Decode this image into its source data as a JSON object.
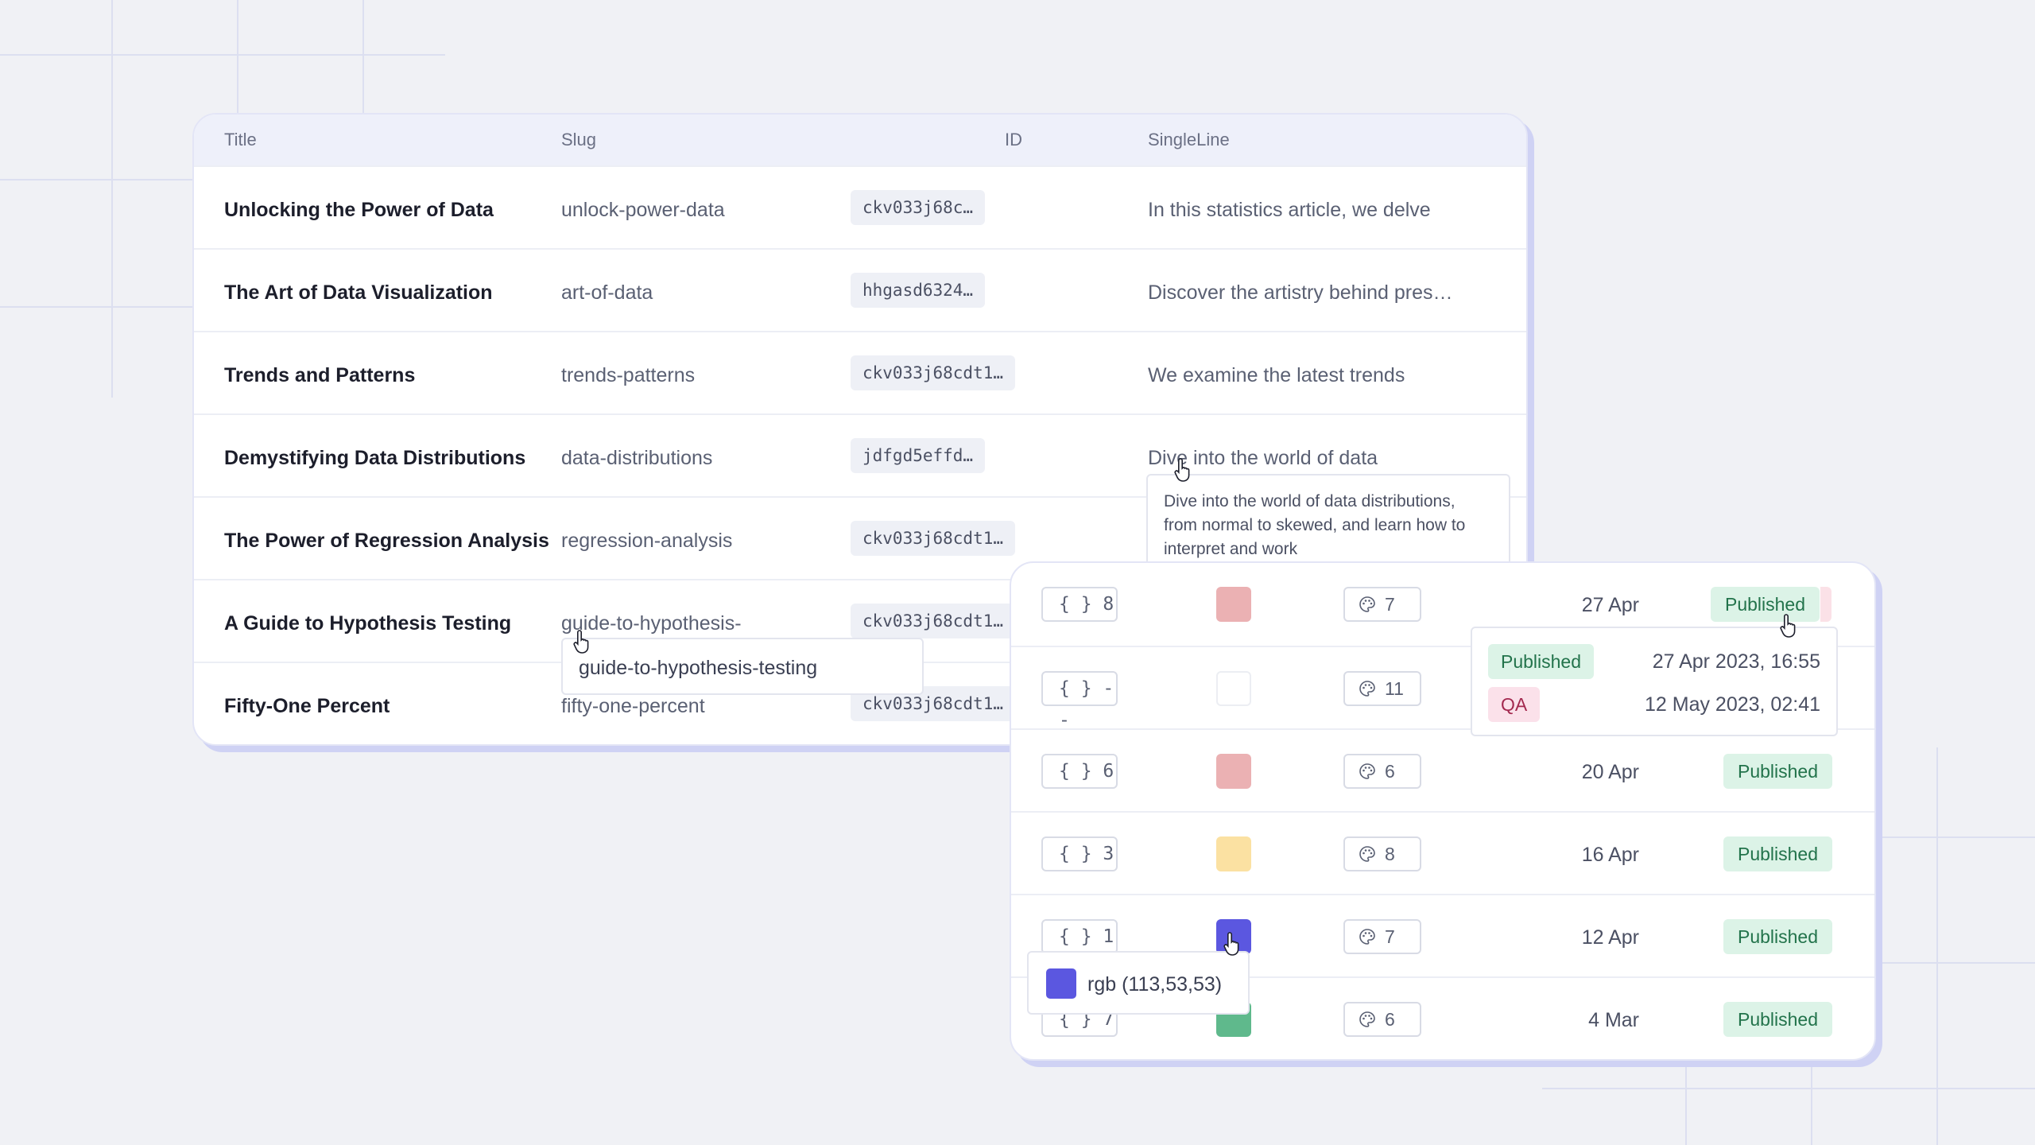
{
  "back_table": {
    "columns": {
      "title": "Title",
      "slug": "Slug",
      "id": "ID",
      "singleline": "SingleLine"
    },
    "rows": [
      {
        "title": "Unlocking the Power of Data",
        "slug": "unlock-power-data",
        "id": "ckv033j68c…",
        "singleline": "In this statistics article, we delve"
      },
      {
        "title": "The Art of Data Visualization",
        "slug": "art-of-data",
        "id": "hhgasd6324…",
        "singleline": "Discover the artistry behind pres…"
      },
      {
        "title": "Trends and Patterns",
        "slug": "trends-patterns",
        "id": "ckv033j68cdt1…",
        "singleline": "We examine the latest trends"
      },
      {
        "title": "Demystifying Data Distributions",
        "slug": "data-distributions",
        "id": "jdfgd5effd…",
        "singleline": "Dive into the world of data"
      },
      {
        "title": "The Power of Regression Analysis",
        "slug": "regression-analysis",
        "id": "ckv033j68cdt1…",
        "singleline": ""
      },
      {
        "title": "A Guide to Hypothesis Testing",
        "slug": "guide-to-hypothesis-",
        "id": "ckv033j68cdt1…",
        "singleline": ""
      },
      {
        "title": "Fifty-One Percent",
        "slug": "fifty-one-percent",
        "id": "ckv033j68cdt1…",
        "singleline": ""
      }
    ],
    "singleline_tooltip": "Dive into the world of data distributions, from normal to skewed, and learn how to interpret and work",
    "slug_tooltip": "guide-to-hypothesis-testing"
  },
  "front_table": {
    "rows": [
      {
        "json": "{ } 8",
        "color": "#ebb1b3",
        "palette": "7",
        "date": "27 Apr",
        "status": "Published"
      },
      {
        "json": "{ } --",
        "color": "",
        "palette": "11",
        "date": "",
        "status": ""
      },
      {
        "json": "{ } 6",
        "color": "#ebb1b3",
        "palette": "6",
        "date": "20 Apr",
        "status": "Published"
      },
      {
        "json": "{ } 3",
        "color": "#fbe1a2",
        "palette": "8",
        "date": "16 Apr",
        "status": "Published"
      },
      {
        "json": "{ } 1",
        "color": "#5b57e0",
        "palette": "7",
        "date": "12 Apr",
        "status": "Published"
      },
      {
        "json": "{ } 7",
        "color": "#5fb98c",
        "palette": "6",
        "date": "4 Mar",
        "status": "Published"
      }
    ],
    "status_popover": [
      {
        "status": "Published",
        "time": "27 Apr 2023, 16:55"
      },
      {
        "status": "QA",
        "time": "12 May 2023, 02:41"
      }
    ],
    "color_tooltip": "rgb (113,53,53)"
  },
  "colors": {
    "accent": "#5b57e0",
    "published_bg": "#dcf3e7",
    "qa_bg": "#fbe1ea",
    "shadow": "#cfd2f4"
  },
  "icons": [
    "palette-icon",
    "hand-pointer-icon"
  ]
}
